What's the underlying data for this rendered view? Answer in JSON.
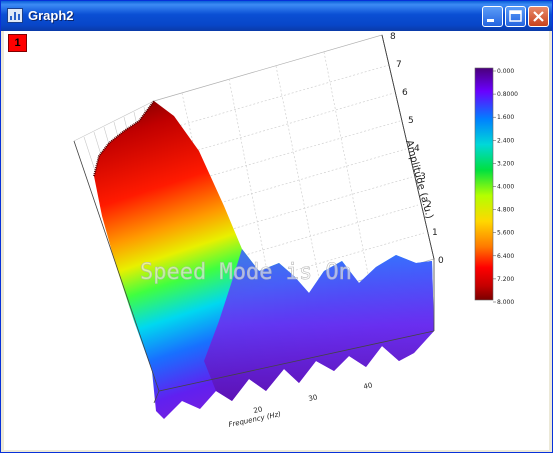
{
  "window": {
    "title": "Graph2"
  },
  "layer": {
    "label": "1"
  },
  "watermark": "Speed Mode is On",
  "icons": [
    "graph-window-icon",
    "minimize-icon",
    "maximize-icon",
    "close-icon"
  ],
  "chart_data": {
    "type": "3d-surface",
    "xlabel": "Frequency (Hz)",
    "ylabel": "",
    "zlabel": "Amplitude (a.u.)",
    "z_ticks": [
      "0",
      "1",
      "2",
      "3",
      "4",
      "5",
      "6",
      "7",
      "8"
    ],
    "zlim": [
      0,
      8
    ],
    "x_ticks": [
      "20",
      "30",
      "40"
    ],
    "colormap": "rainbow",
    "colorbar": {
      "labels": [
        "0.000",
        "0.8000",
        "1.600",
        "2.400",
        "3.200",
        "4.000",
        "4.800",
        "5.600",
        "6.400",
        "7.200",
        "8.000"
      ],
      "colors": [
        "#7a0000",
        "#c30000",
        "#ff0000",
        "#ff7a00",
        "#ffd800",
        "#b4ff00",
        "#00e040",
        "#00d8d8",
        "#0080ff",
        "#6a00ff",
        "#4a007a"
      ]
    },
    "grid": true
  },
  "colors": {
    "titlebar": "#0a4fd4",
    "close_button": "#c8421d",
    "layer_badge": "#ff0000"
  }
}
